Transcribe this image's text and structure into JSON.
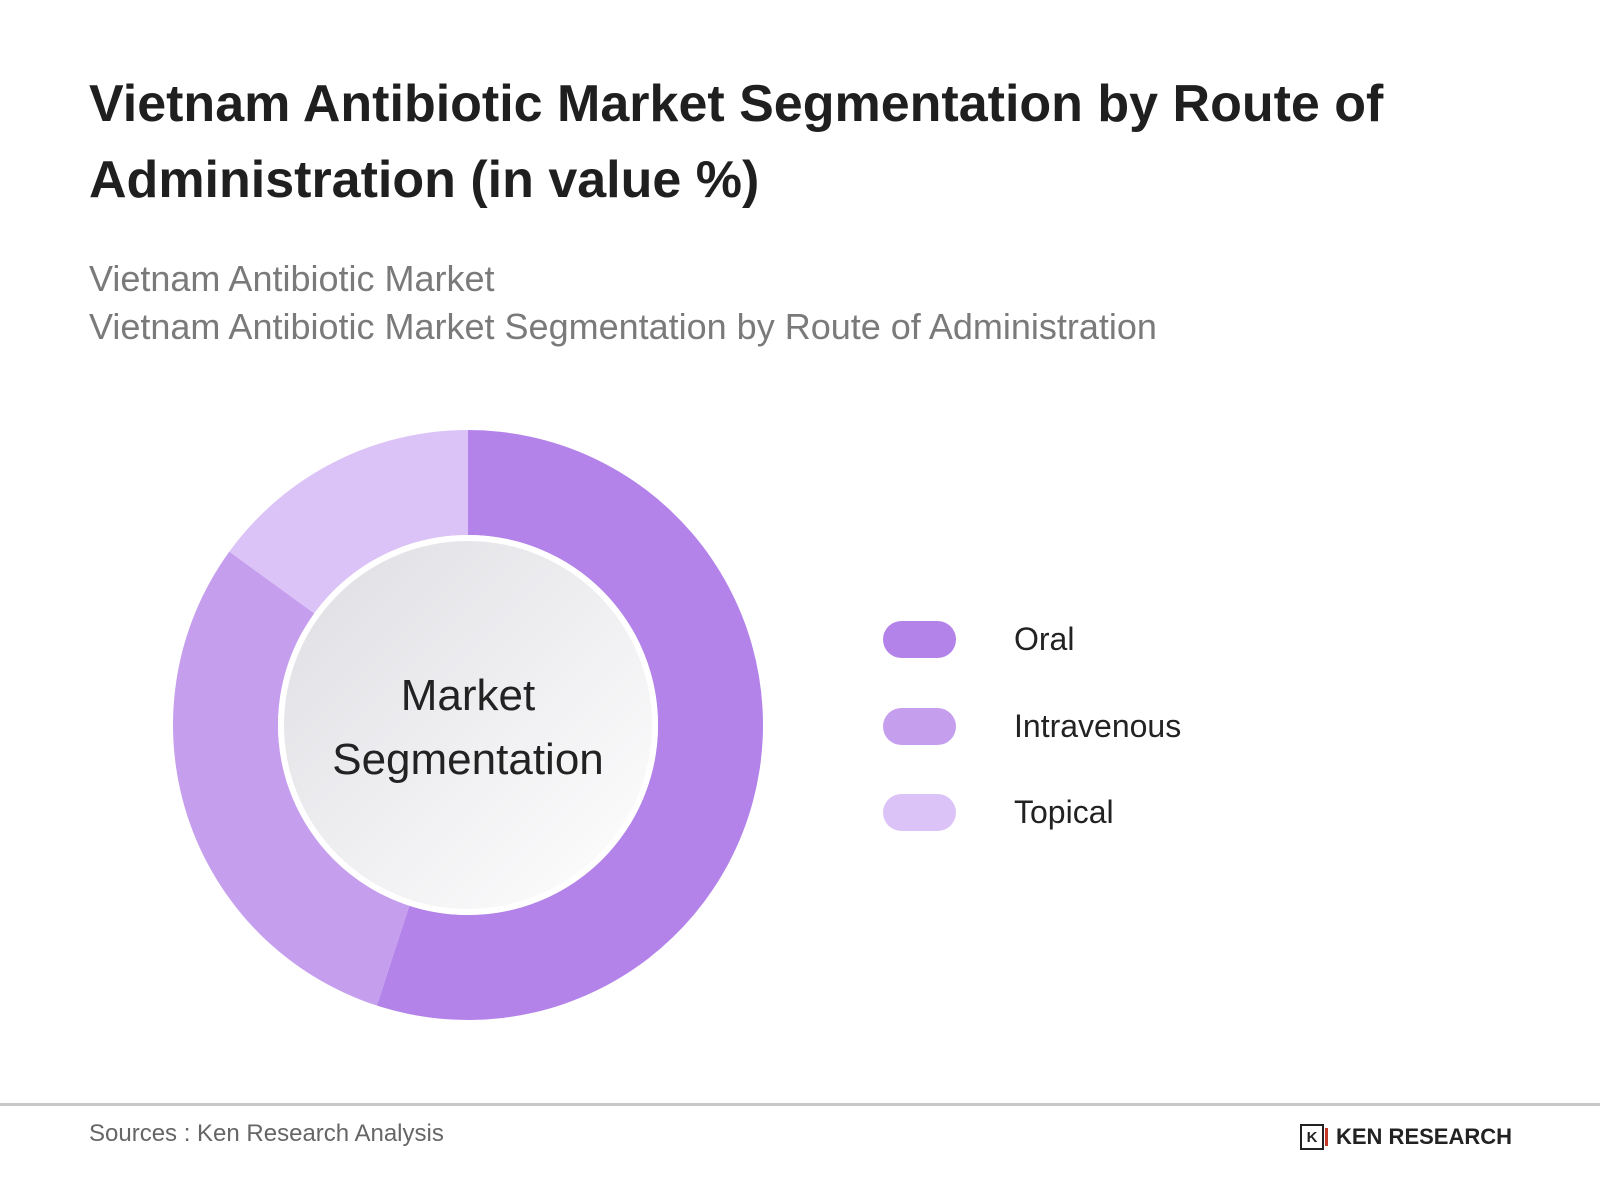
{
  "title": "Vietnam Antibiotic Market Segmentation by Route of Administration (in value %)",
  "subtitle_1": "Vietnam Antibiotic Market",
  "subtitle_2": "Vietnam Antibiotic Market Segmentation by Route of Administration",
  "center_label_1": "Market",
  "center_label_2": "Segmentation",
  "source": "Sources : Ken Research Analysis",
  "logo_text": "KEN RESEARCH",
  "logo_mark": "K",
  "chart_data": {
    "type": "pie",
    "variant": "donut",
    "categories": [
      "Oral",
      "Intravenous",
      "Topical"
    ],
    "values": [
      55,
      30,
      15
    ],
    "colors": [
      "#b383ea",
      "#c59eee",
      "#dcc3f7"
    ],
    "legend_placement": "right"
  }
}
